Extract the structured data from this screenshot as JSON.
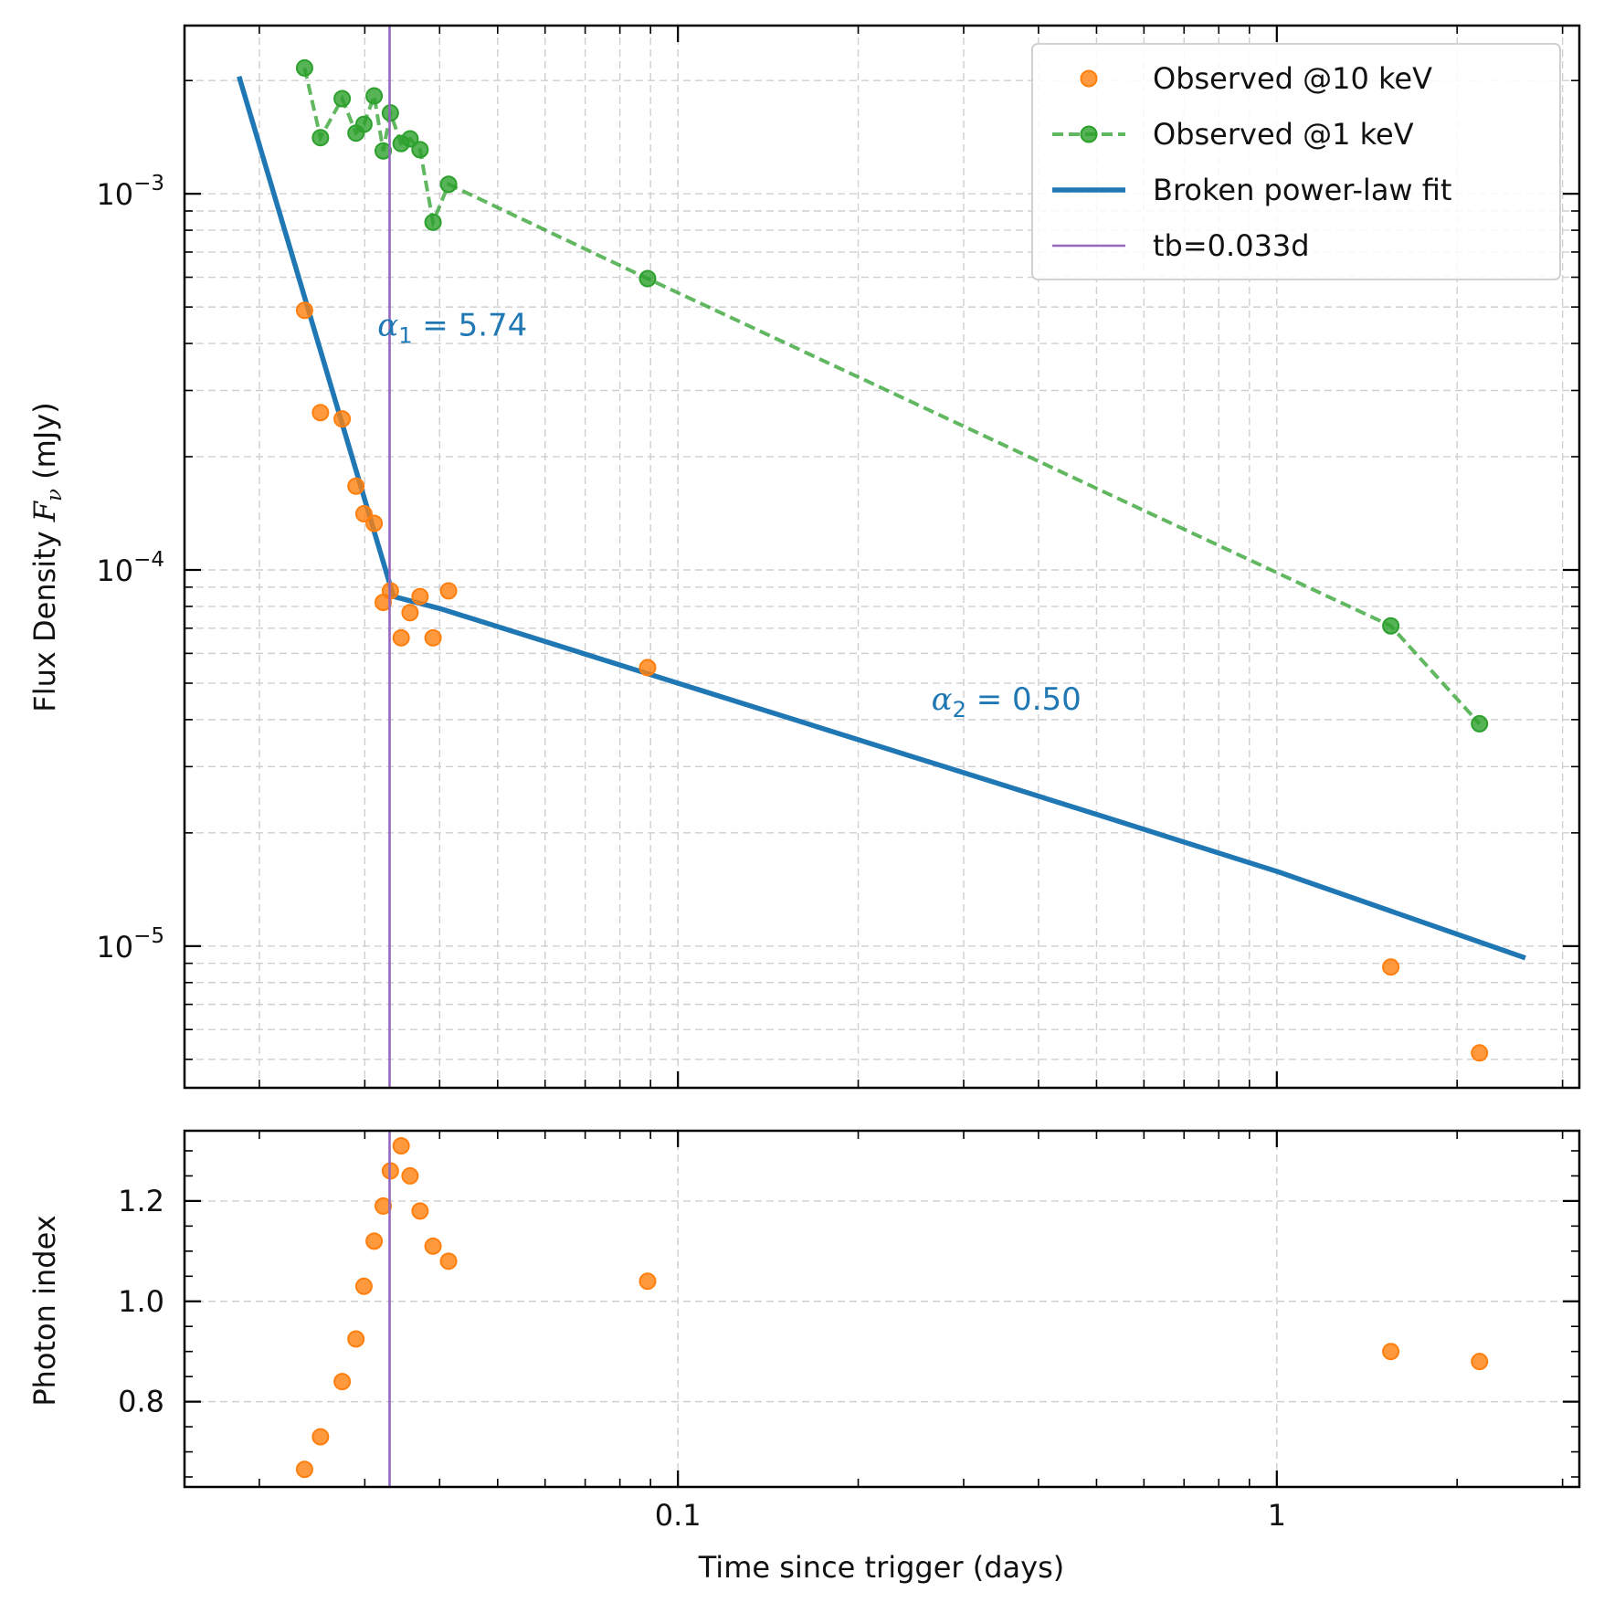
{
  "chart_data": [
    {
      "type": "scatter",
      "panel": "top",
      "xlabel": "Time since trigger (days)",
      "ylabel": "Flux Density F_ν (mJy)",
      "xscale": "log",
      "yscale": "log",
      "xlim": [
        0.015,
        3.2
      ],
      "ylim": [
        4.2e-06,
        0.0028
      ],
      "grid": true,
      "legend_position": "top-right",
      "yticks": [
        {
          "value": 0.001,
          "mant": "10",
          "exp": "−3"
        },
        {
          "value": 0.0001,
          "mant": "10",
          "exp": "−4"
        },
        {
          "value": 1e-05,
          "mant": "10",
          "exp": "−5"
        }
      ],
      "series": [
        {
          "name": "Observed @10 keV",
          "kind": "scatter",
          "color": "#ff7f0e",
          "x": [
            0.0238,
            0.0253,
            0.0275,
            0.029,
            0.0299,
            0.0311,
            0.0322,
            0.0331,
            0.0345,
            0.0357,
            0.0371,
            0.039,
            0.0414,
            0.089,
            1.55,
            2.18
          ],
          "y": [
            0.00049,
            0.000262,
            0.000252,
            0.000167,
            0.000141,
            0.000133,
            8.2e-05,
            8.8e-05,
            6.6e-05,
            7.7e-05,
            8.5e-05,
            6.6e-05,
            8.8e-05,
            5.5e-05,
            8.8e-06,
            5.2e-06
          ]
        },
        {
          "name": "Observed @1 keV",
          "kind": "line-marker",
          "color": "#2ca02c",
          "x": [
            0.0238,
            0.0253,
            0.0275,
            0.029,
            0.0299,
            0.0311,
            0.0322,
            0.0331,
            0.0345,
            0.0357,
            0.0371,
            0.039,
            0.0414,
            0.089,
            1.55,
            2.18
          ],
          "y": [
            0.00216,
            0.00141,
            0.00179,
            0.00145,
            0.00153,
            0.00182,
            0.0013,
            0.00164,
            0.00136,
            0.0014,
            0.00131,
            0.00084,
            0.00106,
            0.000595,
            7.1e-05,
            3.9e-05
          ]
        },
        {
          "name": "Broken power-law fit",
          "kind": "line",
          "color": "#1f77b4",
          "x": [
            0.0185,
            0.0335,
            0.04,
            0.1,
            0.5,
            1.0,
            2.6
          ],
          "y": [
            0.00205,
            8.5e-05,
            7.9e-05,
            5e-05,
            2.24e-05,
            1.58e-05,
            9.3e-06
          ]
        },
        {
          "name": "tb=0.033d",
          "kind": "vline",
          "color": "#9467bd",
          "x": [
            0.033
          ]
        }
      ],
      "annotations": [
        {
          "sym": "α",
          "sub": "1",
          "rest": " = 5.74",
          "x": 0.0315,
          "y": 0.00042,
          "color": "#1f77b4"
        },
        {
          "sym": "α",
          "sub": "2",
          "rest": " = 0.50",
          "x": 0.265,
          "y": 4.25e-05,
          "color": "#1f77b4"
        }
      ]
    },
    {
      "type": "scatter",
      "panel": "bottom",
      "xlabel": "Time since trigger (days)",
      "ylabel": "Photon index",
      "xscale": "log",
      "xlim": [
        0.015,
        3.2
      ],
      "ylim": [
        0.63,
        1.34
      ],
      "grid": true,
      "xticks": [
        {
          "value": 0.1,
          "label": "0.1"
        },
        {
          "value": 1,
          "label": "1"
        }
      ],
      "yticks": [
        {
          "value": 0.8,
          "label": "0.8"
        },
        {
          "value": 1.0,
          "label": "1.0"
        },
        {
          "value": 1.2,
          "label": "1.2"
        }
      ],
      "series": [
        {
          "name": "Photon index",
          "kind": "scatter",
          "color": "#ff7f0e",
          "x": [
            0.0238,
            0.0253,
            0.0275,
            0.029,
            0.0299,
            0.0311,
            0.0322,
            0.0331,
            0.0345,
            0.0357,
            0.0371,
            0.039,
            0.0414,
            0.089,
            1.55,
            2.18
          ],
          "y": [
            0.665,
            0.73,
            0.84,
            0.925,
            1.03,
            1.12,
            1.19,
            1.26,
            1.31,
            1.25,
            1.18,
            1.11,
            1.08,
            1.04,
            0.9,
            0.88
          ]
        },
        {
          "name": "tb=0.033d",
          "kind": "vline",
          "color": "#9467bd",
          "x": [
            0.033
          ]
        }
      ]
    }
  ]
}
